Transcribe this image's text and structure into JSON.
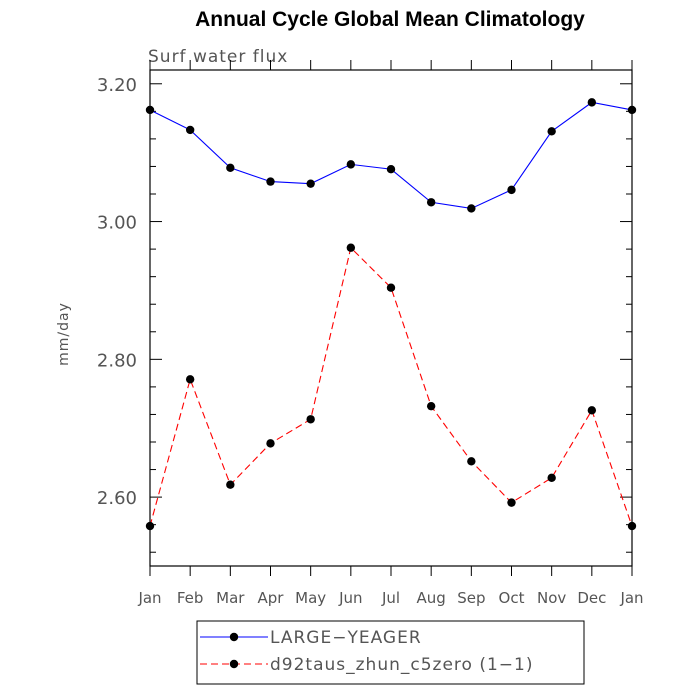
{
  "chart_data": {
    "type": "line",
    "title": "Annual Cycle Global Mean Climatology",
    "subtitle": "Surf water flux",
    "xlabel": "",
    "ylabel": "mm/day",
    "categories": [
      "Jan",
      "Feb",
      "Mar",
      "Apr",
      "May",
      "Jun",
      "Jul",
      "Aug",
      "Sep",
      "Oct",
      "Nov",
      "Dec",
      "Jan"
    ],
    "ylim": [
      2.5,
      3.22
    ],
    "yticks": [
      2.6,
      2.8,
      3.0,
      3.2
    ],
    "ytick_labels": [
      "2.60",
      "2.80",
      "3.00",
      "3.20"
    ],
    "series": [
      {
        "name": "LARGE−YEAGER",
        "color": "#0000ff",
        "dash": "solid",
        "values": [
          3.162,
          3.133,
          3.078,
          3.058,
          3.055,
          3.083,
          3.076,
          3.028,
          3.019,
          3.046,
          3.131,
          3.173,
          3.162
        ]
      },
      {
        "name": "d92taus_zhun_c5zero (1−1)",
        "color": "#ff0000",
        "dash": "dashed",
        "values": [
          2.558,
          2.771,
          2.618,
          2.678,
          2.713,
          2.962,
          2.904,
          2.732,
          2.652,
          2.592,
          2.628,
          2.726,
          2.558
        ]
      }
    ],
    "legend": "bottom-center"
  }
}
